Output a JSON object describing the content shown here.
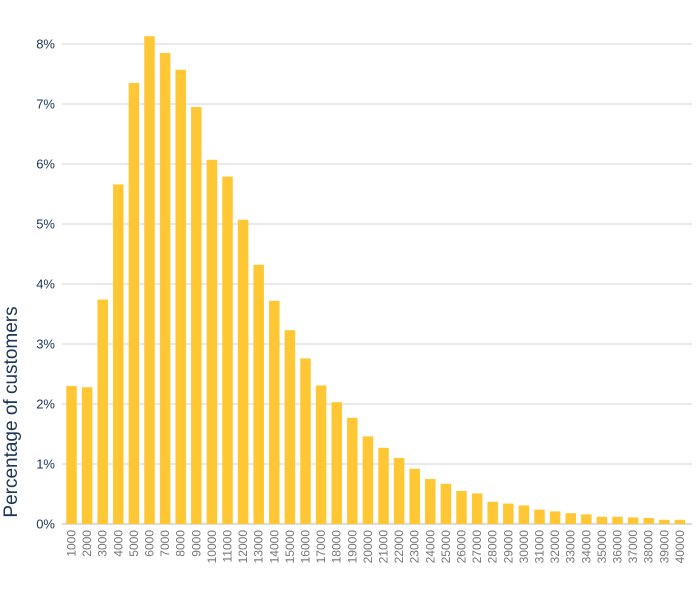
{
  "chart_data": {
    "type": "bar",
    "ylabel": "Percentage of customers",
    "xlabel": "",
    "title": "",
    "bar_color": "#FFC734",
    "grid_color": "#D3D3D3",
    "ytick_color": "#1C3553",
    "xtick_color": "#777777",
    "grid": true,
    "ylim": [
      0,
      8
    ],
    "yticks": [
      {
        "value": 0,
        "label": "0%"
      },
      {
        "value": 1,
        "label": "1%"
      },
      {
        "value": 2,
        "label": "2%"
      },
      {
        "value": 3,
        "label": "3%"
      },
      {
        "value": 4,
        "label": "4%"
      },
      {
        "value": 5,
        "label": "5%"
      },
      {
        "value": 6,
        "label": "6%"
      },
      {
        "value": 7,
        "label": "7%"
      },
      {
        "value": 8,
        "label": "8%"
      }
    ],
    "categories": [
      "1000",
      "2000",
      "3000",
      "4000",
      "5000",
      "6000",
      "7000",
      "8000",
      "9000",
      "10000",
      "11000",
      "12000",
      "13000",
      "14000",
      "15000",
      "16000",
      "17000",
      "18000",
      "19000",
      "20000",
      "21000",
      "22000",
      "23000",
      "24000",
      "25000",
      "26000",
      "27000",
      "28000",
      "29000",
      "30000",
      "31000",
      "32000",
      "33000",
      "34000",
      "35000",
      "36000",
      "37000",
      "38000",
      "39000",
      "40000"
    ],
    "values": [
      2.3,
      2.28,
      3.74,
      5.66,
      7.35,
      8.13,
      7.85,
      7.57,
      6.95,
      6.07,
      5.79,
      5.07,
      4.32,
      3.72,
      3.23,
      2.76,
      2.31,
      2.03,
      1.77,
      1.46,
      1.27,
      1.1,
      0.92,
      0.75,
      0.67,
      0.55,
      0.51,
      0.37,
      0.34,
      0.31,
      0.24,
      0.21,
      0.18,
      0.16,
      0.12,
      0.12,
      0.11,
      0.1,
      0.07,
      0.07
    ]
  }
}
